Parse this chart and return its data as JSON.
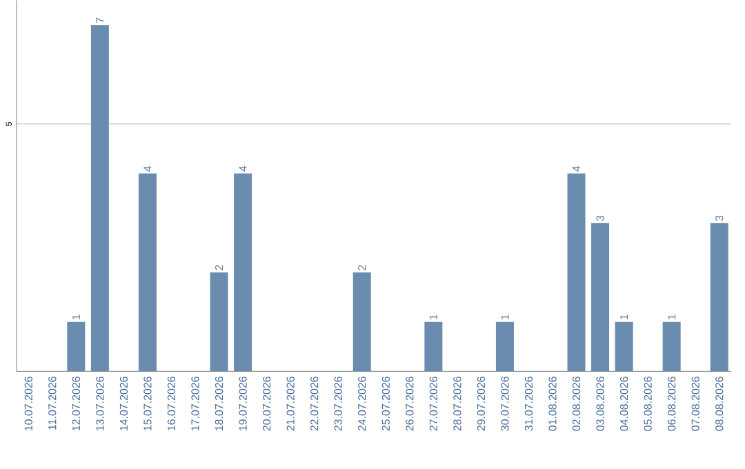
{
  "chart_data": {
    "type": "bar",
    "categories": [
      "10.07.2026",
      "11.07.2026",
      "12.07.2026",
      "13.07.2026",
      "14.07.2026",
      "15.07.2026",
      "16.07.2026",
      "17.07.2026",
      "18.07.2026",
      "19.07.2026",
      "20.07.2026",
      "21.07.2026",
      "22.07.2026",
      "23.07.2026",
      "24.07.2026",
      "25.07.2026",
      "26.07.2026",
      "27.07.2026",
      "28.07.2026",
      "29.07.2026",
      "30.07.2026",
      "31.07.2026",
      "01.08.2026",
      "02.08.2026",
      "03.08.2026",
      "04.08.2026",
      "05.08.2026",
      "06.08.2026",
      "07.08.2026",
      "08.08.2026"
    ],
    "values": [
      0,
      0,
      1,
      7,
      0,
      4,
      0,
      0,
      2,
      4,
      0,
      0,
      0,
      0,
      2,
      0,
      0,
      1,
      0,
      0,
      1,
      0,
      0,
      4,
      3,
      1,
      0,
      1,
      0,
      3
    ],
    "value_labels": [
      null,
      null,
      "1",
      "7",
      null,
      "4",
      null,
      null,
      "2",
      "4",
      null,
      null,
      null,
      null,
      "2",
      null,
      null,
      "1",
      null,
      null,
      "1",
      null,
      null,
      "4",
      "3",
      "1",
      null,
      "1",
      null,
      "3"
    ],
    "color": "#6a8caf",
    "ylim": [
      0,
      7.5
    ],
    "yticks": [
      5
    ],
    "grid": "y"
  }
}
